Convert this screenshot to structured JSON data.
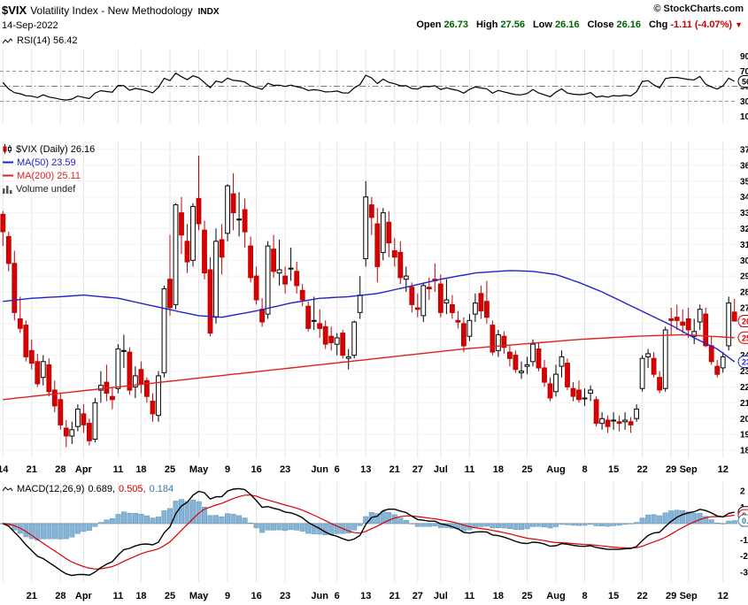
{
  "header": {
    "symbol": "$VIX",
    "title": "Volatility Index - New Methodology",
    "exchange": "INDX",
    "copyright": "© StockCharts.com",
    "date": "14-Sep-2022",
    "quote": {
      "open_label": "Open",
      "open": "26.73",
      "high_label": "High",
      "high": "27.56",
      "low_label": "Low",
      "low": "26.16",
      "close_label": "Close",
      "close": "26.16",
      "chg_label": "Chg",
      "chg": "-1.11 (-4.07%)",
      "direction": "▼"
    }
  },
  "rsi_panel": {
    "label": "RSI(14) 56.42"
  },
  "main_panel": {
    "legend": [
      {
        "label": "$VIX (Daily) 26.16"
      },
      {
        "label": "MA(50) 23.59"
      },
      {
        "label": "MA(200) 25.11"
      },
      {
        "label": "Volume undef"
      }
    ]
  },
  "macd_panel": {
    "name": "MACD(12,26,9)",
    "v1": "0.689,",
    "v2": "0.505,",
    "v3": "0.184"
  },
  "colors": {
    "candle_up_fill": "#ffffff",
    "candle_up_stroke": "#000000",
    "candle_down_fill": "#d80000",
    "candle_down_stroke": "#c00000",
    "ma50": "#2222cc",
    "ma200": "#dd2222",
    "rsi_line": "#000000",
    "macd_line": "#000000",
    "macd_signal": "#dd0000",
    "macd_hist_fill": "#85b4d6",
    "macd_hist_stroke": "#5f93b8",
    "grid": "#e4e4e4",
    "quote_value": "#006600",
    "negative": "#cc0000"
  },
  "chart_data": {
    "type": "candlestick",
    "title": "$VIX (Daily)",
    "last_close": 26.16,
    "price_axis": {
      "min": 17.5,
      "max": 37.5,
      "tick_step": 1
    },
    "x_ticks": [
      [
        "14",
        0
      ],
      [
        "21",
        5
      ],
      [
        "28",
        10
      ],
      [
        "Apr",
        14
      ],
      [
        "11",
        20
      ],
      [
        "18",
        24
      ],
      [
        "25",
        29
      ],
      [
        "May",
        34
      ],
      [
        "9",
        39
      ],
      [
        "16",
        44
      ],
      [
        "23",
        49
      ],
      [
        "Jun",
        55
      ],
      [
        "6",
        58
      ],
      [
        "13",
        63
      ],
      [
        "21",
        68
      ],
      [
        "27",
        72
      ],
      [
        "Jul",
        76
      ],
      [
        "11",
        81
      ],
      [
        "18",
        86
      ],
      [
        "25",
        91
      ],
      [
        "Aug",
        96
      ],
      [
        "8",
        101
      ],
      [
        "15",
        106
      ],
      [
        "22",
        111
      ],
      [
        "29",
        116
      ],
      [
        "Sep",
        119
      ],
      [
        "12",
        125
      ]
    ],
    "x_ticks_bottom": [
      [
        "21",
        5
      ],
      [
        "28",
        10
      ],
      [
        "Apr",
        14
      ],
      [
        "11",
        20
      ],
      [
        "18",
        24
      ],
      [
        "25",
        29
      ],
      [
        "May",
        34
      ],
      [
        "9",
        39
      ],
      [
        "16",
        44
      ],
      [
        "23",
        49
      ],
      [
        "Jun",
        55
      ],
      [
        "6",
        58
      ],
      [
        "13",
        63
      ],
      [
        "21",
        68
      ],
      [
        "27",
        72
      ],
      [
        "Jul",
        76
      ],
      [
        "11",
        81
      ],
      [
        "18",
        86
      ],
      [
        "25",
        91
      ],
      [
        "Aug",
        96
      ],
      [
        "8",
        101
      ],
      [
        "15",
        106
      ],
      [
        "22",
        111
      ],
      [
        "29",
        116
      ],
      [
        "Sep",
        119
      ],
      [
        "12",
        125
      ]
    ],
    "candles": [
      [
        32.9,
        33.1,
        30.9,
        31.8
      ],
      [
        31.5,
        31.8,
        29.3,
        29.8
      ],
      [
        29.8,
        30.6,
        26.2,
        26.7
      ],
      [
        26.3,
        27.7,
        25.4,
        25.7
      ],
      [
        25.9,
        26.2,
        23.6,
        23.9
      ],
      [
        24.3,
        25.0,
        23.1,
        23.5
      ],
      [
        23.6,
        24.1,
        22.0,
        22.2
      ],
      [
        22.6,
        24.0,
        22.1,
        23.6
      ],
      [
        23.4,
        23.8,
        21.4,
        21.7
      ],
      [
        21.8,
        22.4,
        20.4,
        20.8
      ],
      [
        21.2,
        21.6,
        19.3,
        19.6
      ],
      [
        19.4,
        19.9,
        18.2,
        18.9
      ],
      [
        18.9,
        19.8,
        18.4,
        19.3
      ],
      [
        19.5,
        20.9,
        19.2,
        20.6
      ],
      [
        20.3,
        20.9,
        19.1,
        19.6
      ],
      [
        19.7,
        20.0,
        18.3,
        18.6
      ],
      [
        18.7,
        21.3,
        18.5,
        21.0
      ],
      [
        21.8,
        23.0,
        21.0,
        22.1
      ],
      [
        22.3,
        23.4,
        21.1,
        21.6
      ],
      [
        21.4,
        22.0,
        20.6,
        21.2
      ],
      [
        21.9,
        24.7,
        21.6,
        24.4
      ],
      [
        24.3,
        25.3,
        23.2,
        24.3
      ],
      [
        24.2,
        24.5,
        21.5,
        21.8
      ],
      [
        22.0,
        23.3,
        21.3,
        22.7
      ],
      [
        23.1,
        23.6,
        21.6,
        22.2
      ],
      [
        22.4,
        22.6,
        21.0,
        21.4
      ],
      [
        21.1,
        21.6,
        19.8,
        20.3
      ],
      [
        20.2,
        23.0,
        19.8,
        22.7
      ],
      [
        22.9,
        28.4,
        22.6,
        28.2
      ],
      [
        28.8,
        31.6,
        26.5,
        27.0
      ],
      [
        27.2,
        33.6,
        26.9,
        33.5
      ],
      [
        33.0,
        34.0,
        30.4,
        31.6
      ],
      [
        31.2,
        32.3,
        29.2,
        29.9
      ],
      [
        30.0,
        33.6,
        29.6,
        33.4
      ],
      [
        33.9,
        36.6,
        31.9,
        32.3
      ],
      [
        31.9,
        32.5,
        28.8,
        29.2
      ],
      [
        29.4,
        30.2,
        25.2,
        25.4
      ],
      [
        26.4,
        32.0,
        26.0,
        31.2
      ],
      [
        31.3,
        32.3,
        29.1,
        30.2
      ],
      [
        31.7,
        34.8,
        31.2,
        34.7
      ],
      [
        34.2,
        35.5,
        31.9,
        33.0
      ],
      [
        32.6,
        34.3,
        31.5,
        32.6
      ],
      [
        33.2,
        33.9,
        30.8,
        31.8
      ],
      [
        30.9,
        31.5,
        28.6,
        28.9
      ],
      [
        29.0,
        29.6,
        27.2,
        27.5
      ],
      [
        26.9,
        27.6,
        25.8,
        26.1
      ],
      [
        26.6,
        31.2,
        26.3,
        30.9
      ],
      [
        30.7,
        31.6,
        28.9,
        29.3
      ],
      [
        29.2,
        31.3,
        28.4,
        29.4
      ],
      [
        29.0,
        29.6,
        27.9,
        28.5
      ],
      [
        29.5,
        30.8,
        28.7,
        29.5
      ],
      [
        29.3,
        29.9,
        27.9,
        28.4
      ],
      [
        28.1,
        28.5,
        27.1,
        27.5
      ],
      [
        27.1,
        27.4,
        25.5,
        25.7
      ],
      [
        26.2,
        27.7,
        25.6,
        26.2
      ],
      [
        26.0,
        26.9,
        25.1,
        25.7
      ],
      [
        25.8,
        26.2,
        24.4,
        24.7
      ],
      [
        25.2,
        25.8,
        24.3,
        24.8
      ],
      [
        24.7,
        25.4,
        24.0,
        25.1
      ],
      [
        25.4,
        25.6,
        23.8,
        24.0
      ],
      [
        23.8,
        24.4,
        23.1,
        23.9
      ],
      [
        24.0,
        26.2,
        23.8,
        26.1
      ],
      [
        26.7,
        29.0,
        26.3,
        27.8
      ],
      [
        30.1,
        35.0,
        29.6,
        34.0
      ],
      [
        33.5,
        34.0,
        31.6,
        32.7
      ],
      [
        32.3,
        33.3,
        28.6,
        29.6
      ],
      [
        30.5,
        33.3,
        30.0,
        33.0
      ],
      [
        32.4,
        33.1,
        30.2,
        31.1
      ],
      [
        30.6,
        31.4,
        29.6,
        30.2
      ],
      [
        30.5,
        31.2,
        28.5,
        28.9
      ],
      [
        28.8,
        29.6,
        28.0,
        29.0
      ],
      [
        28.3,
        28.6,
        26.7,
        27.2
      ],
      [
        27.0,
        27.9,
        26.4,
        26.9
      ],
      [
        26.5,
        28.6,
        26.1,
        28.4
      ],
      [
        28.3,
        28.9,
        27.5,
        28.2
      ],
      [
        28.8,
        29.8,
        28.0,
        28.7
      ],
      [
        28.5,
        29.1,
        26.4,
        26.7
      ],
      [
        27.3,
        28.8,
        26.6,
        27.5
      ],
      [
        27.2,
        27.8,
        26.3,
        26.7
      ],
      [
        26.2,
        26.8,
        25.7,
        26.1
      ],
      [
        26.0,
        26.4,
        24.2,
        24.6
      ],
      [
        25.2,
        26.6,
        24.9,
        26.2
      ],
      [
        26.6,
        27.9,
        26.1,
        27.3
      ],
      [
        27.9,
        28.4,
        26.3,
        26.8
      ],
      [
        27.4,
        28.7,
        26.0,
        26.4
      ],
      [
        25.9,
        26.2,
        24.0,
        24.2
      ],
      [
        24.3,
        25.6,
        23.9,
        25.3
      ],
      [
        25.2,
        25.5,
        24.1,
        24.5
      ],
      [
        24.2,
        24.6,
        23.3,
        23.8
      ],
      [
        24.0,
        24.3,
        22.9,
        23.1
      ],
      [
        22.9,
        23.6,
        22.5,
        23.0
      ],
      [
        23.3,
        23.9,
        22.8,
        23.4
      ],
      [
        23.6,
        25.0,
        23.3,
        24.7
      ],
      [
        24.4,
        24.8,
        23.0,
        23.2
      ],
      [
        23.2,
        23.7,
        22.0,
        22.3
      ],
      [
        22.2,
        22.6,
        21.1,
        21.3
      ],
      [
        21.7,
        23.4,
        21.4,
        22.8
      ],
      [
        23.3,
        24.3,
        22.6,
        23.9
      ],
      [
        23.5,
        23.8,
        21.8,
        22.0
      ],
      [
        21.9,
        22.3,
        21.1,
        21.4
      ],
      [
        21.8,
        22.4,
        21.0,
        21.2
      ],
      [
        21.3,
        21.9,
        20.8,
        21.3
      ],
      [
        21.6,
        22.1,
        21.1,
        21.8
      ],
      [
        21.2,
        21.4,
        19.5,
        19.7
      ],
      [
        19.7,
        20.4,
        19.3,
        20.0
      ],
      [
        19.9,
        20.2,
        19.1,
        19.5
      ],
      [
        19.9,
        20.4,
        19.3,
        19.9
      ],
      [
        19.8,
        20.2,
        19.2,
        19.7
      ],
      [
        19.8,
        20.4,
        19.3,
        19.9
      ],
      [
        19.8,
        20.1,
        19.1,
        19.6
      ],
      [
        20.0,
        20.9,
        19.8,
        20.6
      ],
      [
        21.9,
        24.0,
        21.7,
        23.8
      ],
      [
        23.9,
        24.4,
        23.2,
        24.1
      ],
      [
        23.8,
        24.2,
        22.6,
        22.8
      ],
      [
        22.6,
        23.0,
        21.6,
        21.8
      ],
      [
        21.9,
        25.8,
        21.7,
        25.6
      ],
      [
        26.3,
        27.0,
        25.3,
        26.2
      ],
      [
        26.4,
        27.2,
        25.6,
        26.2
      ],
      [
        26.1,
        26.9,
        25.4,
        25.9
      ],
      [
        26.3,
        27.0,
        25.1,
        25.6
      ],
      [
        25.2,
        26.3,
        24.7,
        25.5
      ],
      [
        26.1,
        27.2,
        25.6,
        26.9
      ],
      [
        26.6,
        27.0,
        24.5,
        24.6
      ],
      [
        24.6,
        25.2,
        23.4,
        23.6
      ],
      [
        23.3,
        23.7,
        22.6,
        22.8
      ],
      [
        23.2,
        24.2,
        22.9,
        23.9
      ],
      [
        24.6,
        27.7,
        24.3,
        27.3
      ],
      [
        26.73,
        27.56,
        26.16,
        26.16
      ]
    ],
    "overlays": {
      "ma50_last": 23.59,
      "ma200_last": 25.11,
      "ma50_keypoints": [
        [
          0,
          27.4
        ],
        [
          5,
          27.6
        ],
        [
          10,
          27.7
        ],
        [
          14,
          27.8
        ],
        [
          20,
          27.6
        ],
        [
          25,
          27.2
        ],
        [
          30,
          26.8
        ],
        [
          34,
          26.5
        ],
        [
          38,
          26.4
        ],
        [
          44,
          26.8
        ],
        [
          50,
          27.3
        ],
        [
          55,
          27.6
        ],
        [
          60,
          27.7
        ],
        [
          65,
          27.9
        ],
        [
          70,
          28.3
        ],
        [
          76,
          28.8
        ],
        [
          82,
          29.2
        ],
        [
          88,
          29.35
        ],
        [
          92,
          29.3
        ],
        [
          96,
          29.1
        ],
        [
          100,
          28.6
        ],
        [
          104,
          28.0
        ],
        [
          108,
          27.3
        ],
        [
          112,
          26.6
        ],
        [
          116,
          25.9
        ],
        [
          120,
          25.1
        ],
        [
          124,
          24.4
        ],
        [
          127,
          23.59
        ]
      ],
      "ma200_keypoints": [
        [
          0,
          21.2
        ],
        [
          10,
          21.6
        ],
        [
          20,
          22.0
        ],
        [
          30,
          22.4
        ],
        [
          40,
          22.8
        ],
        [
          50,
          23.2
        ],
        [
          60,
          23.6
        ],
        [
          70,
          24.0
        ],
        [
          80,
          24.4
        ],
        [
          90,
          24.7
        ],
        [
          100,
          25.0
        ],
        [
          110,
          25.2
        ],
        [
          118,
          25.3
        ],
        [
          127,
          25.11
        ]
      ]
    },
    "rsi": {
      "period": 14,
      "last": 56.42,
      "bands": [
        70,
        50,
        30
      ],
      "axis_ticks": [
        90,
        70,
        50,
        30,
        10
      ]
    },
    "macd": {
      "fast": 12,
      "slow": 26,
      "signal": 9,
      "macd_last": 0.689,
      "signal_last": 0.505,
      "hist_last": 0.184
    },
    "pills": {
      "rsi": {
        "text": "56.42",
        "color": "#000000",
        "v": 56.42
      },
      "price": [
        {
          "text": "26.16",
          "color": "#cc0000",
          "v": 26.16
        },
        {
          "text": "25.11",
          "color": "#cc0000",
          "v": 25.11
        },
        {
          "text": "23.59",
          "color": "#2222cc",
          "v": 23.59
        }
      ]
    }
  }
}
